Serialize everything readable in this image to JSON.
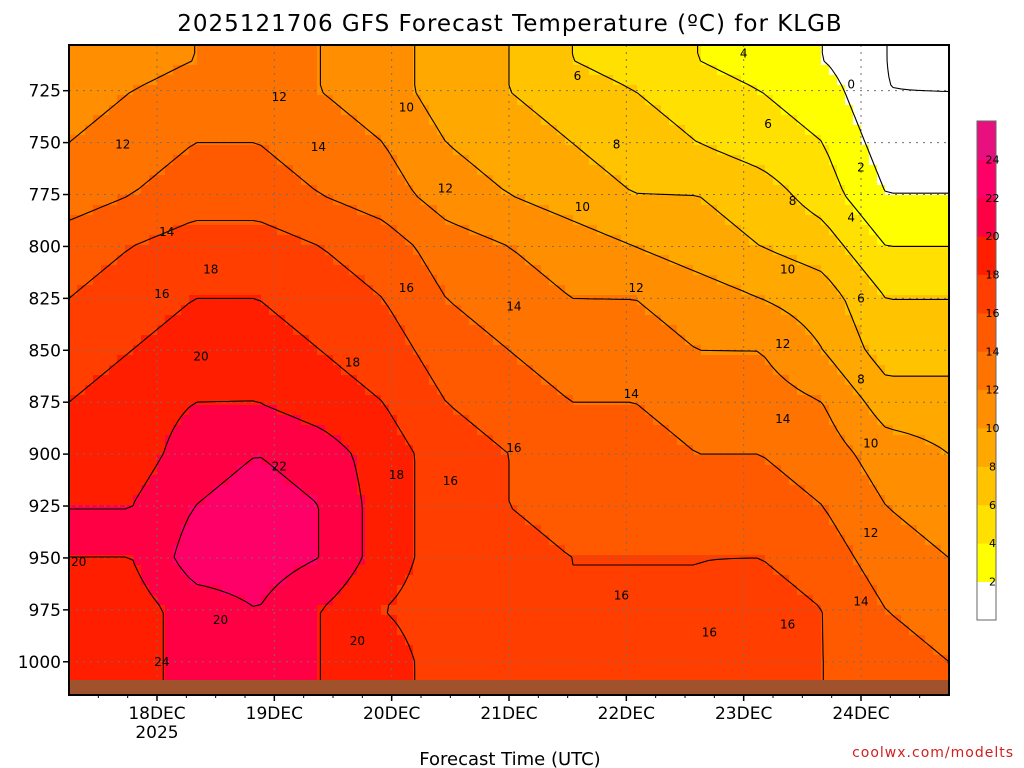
{
  "chart_data": {
    "type": "heatmap",
    "title": "2025121706 GFS Forecast Temperature (ºC) for KLGB",
    "xlabel": "Forecast Time (UTC)",
    "ylabel": "",
    "credit": "coolwx.com/modelts",
    "x_ticks": [
      {
        "label": "18DEC",
        "sublabel": "2025",
        "hours_from_init": 18
      },
      {
        "label": "19DEC",
        "sublabel": "",
        "hours_from_init": 42
      },
      {
        "label": "20DEC",
        "sublabel": "",
        "hours_from_init": 66
      },
      {
        "label": "21DEC",
        "sublabel": "",
        "hours_from_init": 90
      },
      {
        "label": "22DEC",
        "sublabel": "",
        "hours_from_init": 114
      },
      {
        "label": "23DEC",
        "sublabel": "",
        "hours_from_init": 138
      },
      {
        "label": "24DEC",
        "sublabel": "",
        "hours_from_init": 162
      }
    ],
    "x_range_hours": [
      0,
      180
    ],
    "y_levels_hpa": [
      725,
      750,
      775,
      800,
      825,
      850,
      875,
      900,
      925,
      950,
      975,
      1000
    ],
    "y_range_hpa": [
      703,
      1016
    ],
    "y_reversed": true,
    "colorbar": {
      "ticks": [
        2,
        4,
        6,
        8,
        10,
        12,
        14,
        16,
        18,
        20,
        22,
        24
      ],
      "colors": [
        "#ffffff",
        "#ffff00",
        "#ffe000",
        "#ffc300",
        "#ffa800",
        "#ff8f00",
        "#ff7400",
        "#ff5a00",
        "#ff3e00",
        "#ff1e00",
        "#ff0044",
        "#ff0068",
        "#e8107e"
      ]
    },
    "grid": true,
    "temperature_rows": [
      {
        "level_hpa": 710,
        "values": [
          10,
          11,
          12,
          13,
          12,
          11,
          9,
          8,
          6,
          5,
          4,
          3,
          2,
          0,
          -1
        ]
      },
      {
        "level_hpa": 725,
        "values": [
          11,
          12,
          13,
          13,
          12,
          11,
          9,
          8,
          7,
          6,
          5,
          4,
          3,
          0,
          0
        ]
      },
      {
        "level_hpa": 750,
        "values": [
          12,
          13,
          14,
          14,
          13,
          12,
          10,
          9,
          8,
          7,
          6,
          5,
          4,
          1,
          1
        ]
      },
      {
        "level_hpa": 775,
        "values": [
          13,
          14,
          15,
          15,
          14,
          13,
          11,
          10,
          9,
          8,
          8,
          7,
          5,
          2,
          2
        ]
      },
      {
        "level_hpa": 800,
        "values": [
          15,
          16,
          17,
          17,
          16,
          15,
          13,
          12,
          11,
          10,
          9,
          8,
          7,
          4,
          4
        ]
      },
      {
        "level_hpa": 825,
        "values": [
          16,
          17,
          18,
          18,
          17,
          16,
          14,
          13,
          12,
          12,
          11,
          10,
          9,
          6,
          6
        ]
      },
      {
        "level_hpa": 850,
        "values": [
          17,
          18,
          19,
          19,
          18,
          17,
          15,
          14,
          13,
          13,
          12,
          12,
          10,
          7,
          7
        ]
      },
      {
        "level_hpa": 875,
        "values": [
          18,
          19,
          20,
          20,
          19,
          18,
          16,
          15,
          14,
          14,
          13,
          13,
          12,
          9,
          9
        ]
      },
      {
        "level_hpa": 900,
        "values": [
          19,
          19,
          21,
          22,
          21,
          19,
          17,
          16,
          15,
          15,
          14,
          14,
          13,
          11,
          10
        ]
      },
      {
        "level_hpa": 925,
        "values": [
          20,
          20,
          22,
          23,
          22,
          19,
          17,
          16,
          15,
          15,
          15,
          15,
          14,
          12,
          11
        ]
      },
      {
        "level_hpa": 950,
        "values": [
          20,
          20,
          23,
          23,
          22,
          19,
          17,
          17,
          16,
          16,
          16,
          16,
          15,
          13,
          12
        ]
      },
      {
        "level_hpa": 975,
        "values": [
          19,
          19,
          21,
          22,
          20,
          18,
          17,
          16,
          16,
          16,
          16,
          17,
          16,
          14,
          13
        ]
      },
      {
        "level_hpa": 1000,
        "values": [
          19,
          19,
          21,
          21,
          20,
          19,
          17,
          17,
          17,
          17,
          17,
          17,
          16,
          15,
          14
        ]
      }
    ],
    "contour_labels": [
      {
        "text": "0",
        "t_hours": 160,
        "p_hpa": 722
      },
      {
        "text": "2",
        "t_hours": 162,
        "p_hpa": 762
      },
      {
        "text": "4",
        "t_hours": 138,
        "p_hpa": 707
      },
      {
        "text": "4",
        "t_hours": 160,
        "p_hpa": 786
      },
      {
        "text": "6",
        "t_hours": 104,
        "p_hpa": 718
      },
      {
        "text": "6",
        "t_hours": 143,
        "p_hpa": 741
      },
      {
        "text": "6",
        "t_hours": 162,
        "p_hpa": 825
      },
      {
        "text": "8",
        "t_hours": 112,
        "p_hpa": 751
      },
      {
        "text": "8",
        "t_hours": 148,
        "p_hpa": 778
      },
      {
        "text": "8",
        "t_hours": 162,
        "p_hpa": 864
      },
      {
        "text": "10",
        "t_hours": 69,
        "p_hpa": 733
      },
      {
        "text": "10",
        "t_hours": 105,
        "p_hpa": 781
      },
      {
        "text": "10",
        "t_hours": 147,
        "p_hpa": 811
      },
      {
        "text": "10",
        "t_hours": 164,
        "p_hpa": 895
      },
      {
        "text": "12",
        "t_hours": 43,
        "p_hpa": 728
      },
      {
        "text": "12",
        "t_hours": 11,
        "p_hpa": 751
      },
      {
        "text": "12",
        "t_hours": 77,
        "p_hpa": 772
      },
      {
        "text": "12",
        "t_hours": 116,
        "p_hpa": 820
      },
      {
        "text": "12",
        "t_hours": 146,
        "p_hpa": 847
      },
      {
        "text": "12",
        "t_hours": 164,
        "p_hpa": 938
      },
      {
        "text": "14",
        "t_hours": 51,
        "p_hpa": 752
      },
      {
        "text": "14",
        "t_hours": 20,
        "p_hpa": 793
      },
      {
        "text": "14",
        "t_hours": 91,
        "p_hpa": 829
      },
      {
        "text": "14",
        "t_hours": 115,
        "p_hpa": 871
      },
      {
        "text": "14",
        "t_hours": 146,
        "p_hpa": 883
      },
      {
        "text": "14",
        "t_hours": 162,
        "p_hpa": 971
      },
      {
        "text": "16",
        "t_hours": 69,
        "p_hpa": 820
      },
      {
        "text": "16",
        "t_hours": 19,
        "p_hpa": 823
      },
      {
        "text": "16",
        "t_hours": 91,
        "p_hpa": 897
      },
      {
        "text": "16",
        "t_hours": 78,
        "p_hpa": 913
      },
      {
        "text": "16",
        "t_hours": 113,
        "p_hpa": 968
      },
      {
        "text": "16",
        "t_hours": 131,
        "p_hpa": 986
      },
      {
        "text": "16",
        "t_hours": 147,
        "p_hpa": 982
      },
      {
        "text": "18",
        "t_hours": 29,
        "p_hpa": 811
      },
      {
        "text": "18",
        "t_hours": 58,
        "p_hpa": 856
      },
      {
        "text": "18",
        "t_hours": 67,
        "p_hpa": 910
      },
      {
        "text": "20",
        "t_hours": 27,
        "p_hpa": 853
      },
      {
        "text": "20",
        "t_hours": 2,
        "p_hpa": 952
      },
      {
        "text": "20",
        "t_hours": 31,
        "p_hpa": 980
      },
      {
        "text": "20",
        "t_hours": 59,
        "p_hpa": 990
      },
      {
        "text": "22",
        "t_hours": 43,
        "p_hpa": 906
      },
      {
        "text": "24",
        "t_hours": 19,
        "p_hpa": 1000
      }
    ]
  }
}
